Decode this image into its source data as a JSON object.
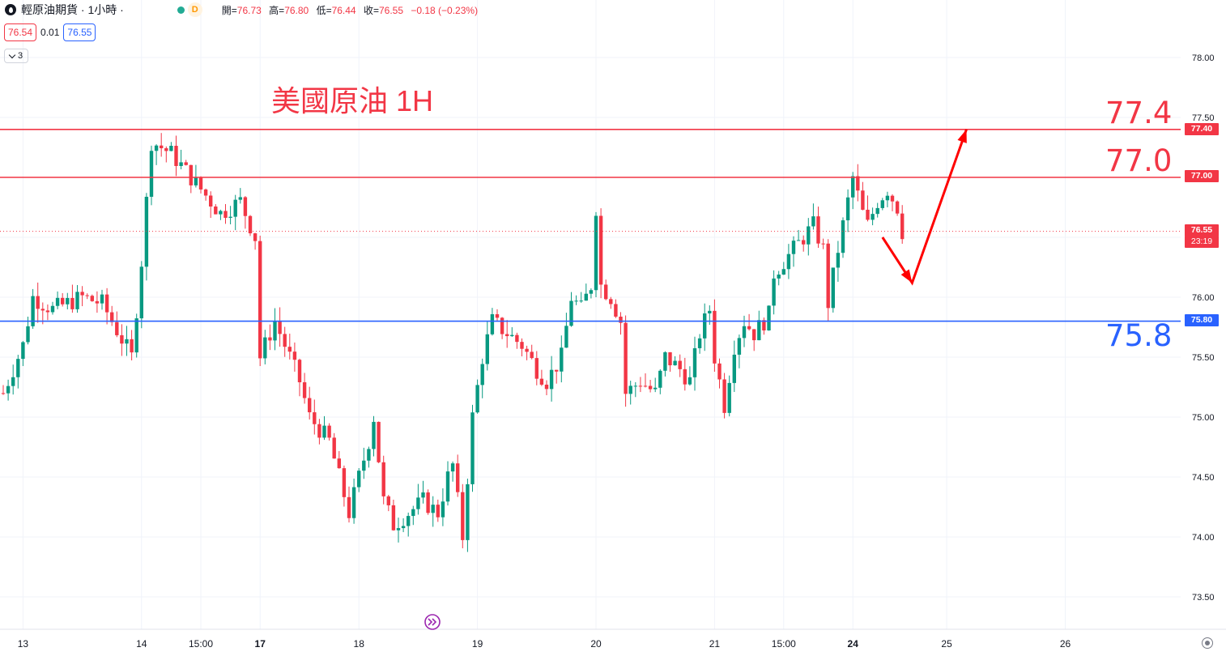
{
  "header": {
    "symbol_title": "輕原油期貨 · 1小時 ·",
    "market_status_badge": "D",
    "ohlc": {
      "open_label": "開=",
      "open": "76.73",
      "high_label": "高=",
      "high": "76.80",
      "low_label": "低=",
      "low": "76.44",
      "close_label": "收=",
      "close": "76.55",
      "change": "−0.18 (−0.23%)"
    },
    "sell_price": "76.54",
    "spread": "0.01",
    "buy_price": "76.55",
    "indicators_collapse_count": "3"
  },
  "annotation_title": "美國原油 1H",
  "levels": [
    {
      "label": "77.4",
      "tag": "77.40",
      "value": 77.4,
      "color": "#f23645"
    },
    {
      "label": "77.0",
      "tag": "77.00",
      "value": 77.0,
      "color": "#f23645"
    },
    {
      "label": "75.8",
      "tag": "75.80",
      "value": 75.8,
      "color": "#2962ff"
    }
  ],
  "last_price": {
    "tag": "76.55",
    "countdown": "23:19",
    "value": 76.55,
    "color": "#f23645"
  },
  "colors": {
    "up": "#089981",
    "down": "#f23645",
    "grid": "#f0f3fa",
    "axis_text": "#131722"
  },
  "icons": [
    "logo-icon",
    "market-status-dot-icon",
    "chevron-down-icon",
    "goto-realtime-icon",
    "settings-gear-icon"
  ],
  "chart_data": {
    "type": "candlestick",
    "title": "美國原油 1H",
    "y_axis": {
      "min": 73.25,
      "max": 78.5,
      "ticks": [
        "73.50",
        "74.00",
        "74.50",
        "75.00",
        "75.50",
        "76.00",
        "76.50",
        "77.00",
        "77.50",
        "78.00"
      ]
    },
    "x_axis_labels": [
      {
        "text": "13",
        "bar": 4,
        "bold": false
      },
      {
        "text": "14",
        "bar": 28,
        "bold": false
      },
      {
        "text": "15:00",
        "bar": 40,
        "bold": false
      },
      {
        "text": "17",
        "bar": 52,
        "bold": true
      },
      {
        "text": "18",
        "bar": 72,
        "bold": false
      },
      {
        "text": "19",
        "bar": 96,
        "bold": false
      },
      {
        "text": "20",
        "bar": 120,
        "bold": false
      },
      {
        "text": "21",
        "bar": 144,
        "bold": false
      },
      {
        "text": "15:00",
        "bar": 158,
        "bold": false
      },
      {
        "text": "24",
        "bar": 172,
        "bold": true
      },
      {
        "text": "25",
        "bar": 191,
        "bold": false
      },
      {
        "text": "26",
        "bar": 215,
        "bold": false
      }
    ],
    "projection_path": [
      [
        178,
        76.5
      ],
      [
        184,
        76.12
      ],
      [
        195,
        77.4
      ]
    ],
    "anchors": [
      [
        0,
        75.2
      ],
      [
        4,
        75.6
      ],
      [
        6,
        76.0
      ],
      [
        10,
        75.9
      ],
      [
        16,
        76.0
      ],
      [
        20,
        75.95
      ],
      [
        26,
        75.5
      ],
      [
        28,
        76.3
      ],
      [
        30,
        77.3
      ],
      [
        34,
        77.2
      ],
      [
        38,
        77.0
      ],
      [
        44,
        76.7
      ],
      [
        48,
        76.8
      ],
      [
        51,
        76.5
      ],
      [
        52,
        75.5
      ],
      [
        55,
        75.8
      ],
      [
        58,
        75.5
      ],
      [
        60,
        75.3
      ],
      [
        62,
        75.0
      ],
      [
        66,
        74.8
      ],
      [
        68,
        74.5
      ],
      [
        70,
        74.2
      ],
      [
        72,
        74.5
      ],
      [
        74,
        74.8
      ],
      [
        75,
        75.0
      ],
      [
        77,
        74.3
      ],
      [
        79,
        74.1
      ],
      [
        82,
        74.2
      ],
      [
        85,
        74.3
      ],
      [
        88,
        74.2
      ],
      [
        90,
        74.5
      ],
      [
        91,
        74.6
      ],
      [
        93,
        74.0
      ],
      [
        95,
        75.0
      ],
      [
        97,
        75.5
      ],
      [
        99,
        75.8
      ],
      [
        102,
        75.7
      ],
      [
        105,
        75.6
      ],
      [
        108,
        75.4
      ],
      [
        110,
        75.3
      ],
      [
        113,
        75.5
      ],
      [
        115,
        76.0
      ],
      [
        117,
        75.9
      ],
      [
        119,
        76.1
      ],
      [
        120,
        76.75
      ],
      [
        121,
        76.1
      ],
      [
        123,
        76.0
      ],
      [
        125,
        75.8
      ],
      [
        126,
        75.2
      ],
      [
        129,
        75.3
      ],
      [
        132,
        75.2
      ],
      [
        134,
        75.5
      ],
      [
        137,
        75.4
      ],
      [
        139,
        75.3
      ],
      [
        141,
        75.7
      ],
      [
        143,
        75.9
      ],
      [
        144,
        75.5
      ],
      [
        146,
        75.1
      ],
      [
        148,
        75.6
      ],
      [
        150,
        75.8
      ],
      [
        152,
        75.7
      ],
      [
        154,
        75.8
      ],
      [
        155,
        75.85
      ],
      [
        156,
        76.2
      ],
      [
        158,
        76.3
      ],
      [
        160,
        76.4
      ],
      [
        162,
        76.5
      ],
      [
        164,
        76.6
      ],
      [
        166,
        76.4
      ],
      [
        167,
        75.95
      ],
      [
        169,
        76.4
      ],
      [
        171,
        76.8
      ],
      [
        172,
        77.0
      ],
      [
        174,
        76.7
      ],
      [
        175,
        76.6
      ],
      [
        177,
        76.8
      ],
      [
        179,
        76.9
      ],
      [
        181,
        76.75
      ],
      [
        182,
        76.55
      ]
    ]
  }
}
